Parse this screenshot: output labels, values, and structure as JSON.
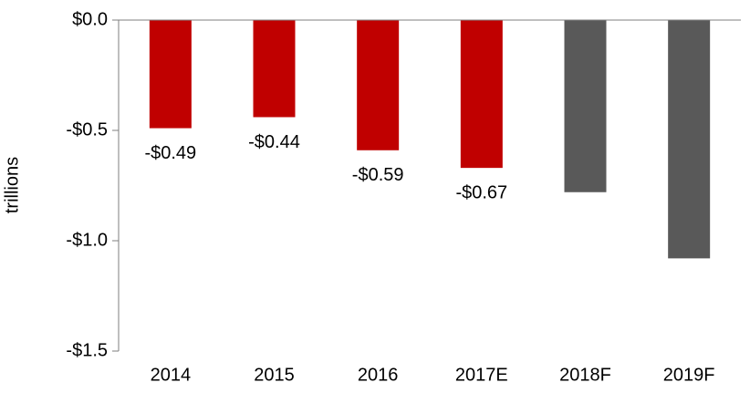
{
  "chart_data": {
    "type": "bar",
    "y_axis_label": "trillions",
    "categories": [
      "2014",
      "2015",
      "2016",
      "2017E",
      "2018F",
      "2019F"
    ],
    "values": [
      -0.49,
      -0.44,
      -0.59,
      -0.67,
      -0.78,
      -1.08
    ],
    "value_labels": [
      "-$0.49",
      "-$0.44",
      "-$0.59",
      "-$0.67",
      null,
      null
    ],
    "colors": [
      "#c00000",
      "#c00000",
      "#c00000",
      "#c00000",
      "#595959",
      "#595959"
    ],
    "ylim": [
      -1.5,
      0
    ],
    "yticks": [
      {
        "value": 0,
        "label": "$0.0"
      },
      {
        "value": -0.5,
        "label": "-$0.5"
      },
      {
        "value": -1,
        "label": "-$1.0"
      },
      {
        "value": -1.5,
        "label": "-$1.5"
      }
    ],
    "grid": false
  }
}
